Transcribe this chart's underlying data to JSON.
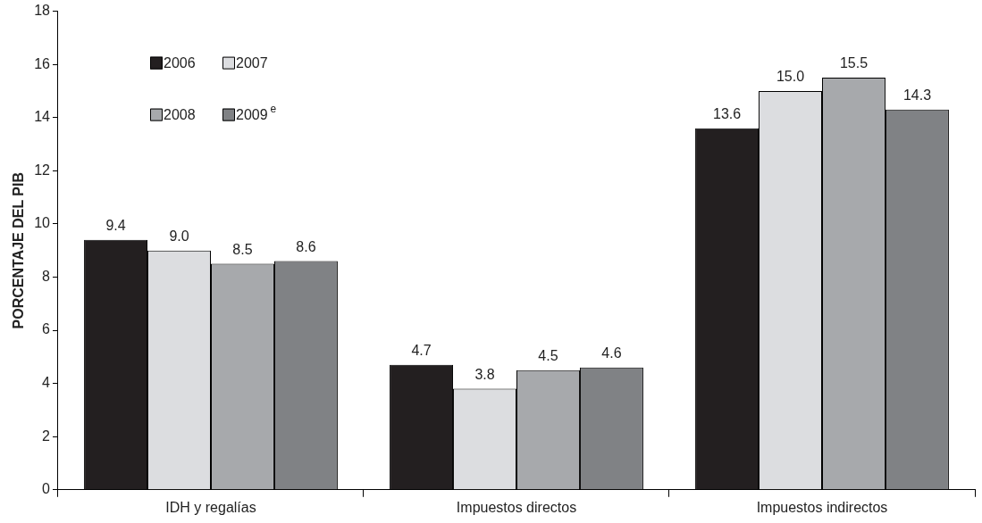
{
  "chart_data": {
    "type": "bar",
    "ylabel": "PORCENTAJE DEL PIB",
    "categories": [
      "IDH y regalías",
      "Impuestos directos",
      "Impuestos indirectos"
    ],
    "series": [
      {
        "name": "2006",
        "color": "#231f20",
        "values": [
          9.4,
          4.7,
          13.6
        ],
        "value_labels": [
          "9.4",
          "4.7",
          "13.6"
        ]
      },
      {
        "name": "2007",
        "color": "#dcdde0",
        "values": [
          9.0,
          3.8,
          15.0
        ],
        "value_labels": [
          "9.0",
          "3.8",
          "15.0"
        ]
      },
      {
        "name": "2008",
        "color": "#a7a9ac",
        "values": [
          8.5,
          4.5,
          15.5
        ],
        "value_labels": [
          "8.5",
          "4.5",
          "15.5"
        ]
      },
      {
        "name": "2009$^{e}$",
        "color": "#808285",
        "values": [
          8.6,
          4.6,
          14.3
        ],
        "value_labels": [
          "8.6",
          "4.6",
          "14.3"
        ]
      }
    ],
    "ylim": [
      0,
      18
    ],
    "yticks": [
      0,
      2,
      4,
      6,
      8,
      10,
      12,
      14,
      16,
      18
    ],
    "grid": false,
    "legend": "top left"
  }
}
